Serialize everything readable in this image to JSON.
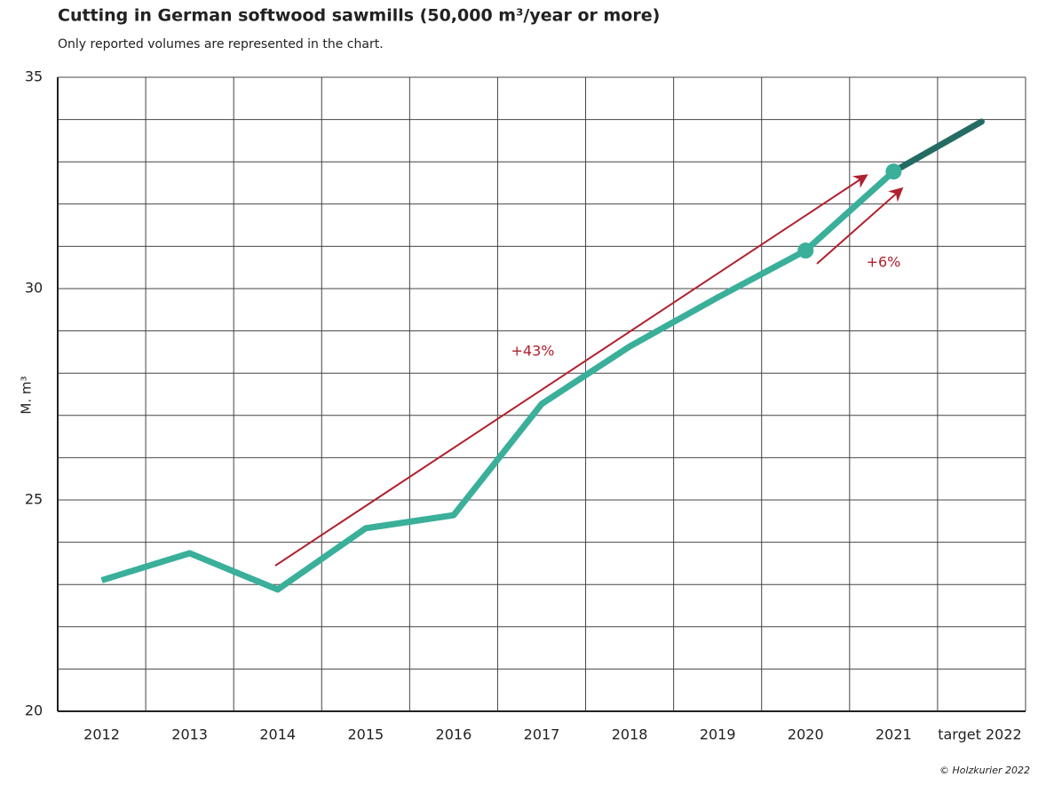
{
  "chart_data": {
    "type": "line",
    "title": "Cutting in German softwood sawmills (50,000 m³/year or more)",
    "subtitle": "Only reported volumes are represented in the chart.",
    "y_label": "M. m³",
    "source": "© Holzkurier 2022",
    "categories": [
      "2012",
      "2013",
      "2014",
      "2015",
      "2016",
      "2017",
      "2018",
      "2019",
      "2020",
      "2021",
      "target 2022"
    ],
    "values": [
      23.1,
      23.74,
      22.88,
      24.33,
      24.64,
      27.27,
      28.63,
      29.79,
      30.9,
      32.77,
      33.95
    ],
    "color": "#3aaf9a",
    "target_color": "#236b63",
    "markers": [
      8,
      9
    ],
    "ylim": [
      20,
      35
    ],
    "yticks": [
      20,
      25,
      30,
      35
    ],
    "grid_y": [
      20,
      21,
      22,
      23,
      24,
      25,
      26,
      27,
      28,
      29,
      30,
      31,
      32,
      33,
      34,
      35
    ],
    "grid": true,
    "annotations": [
      "+43%",
      "+6%"
    ]
  }
}
